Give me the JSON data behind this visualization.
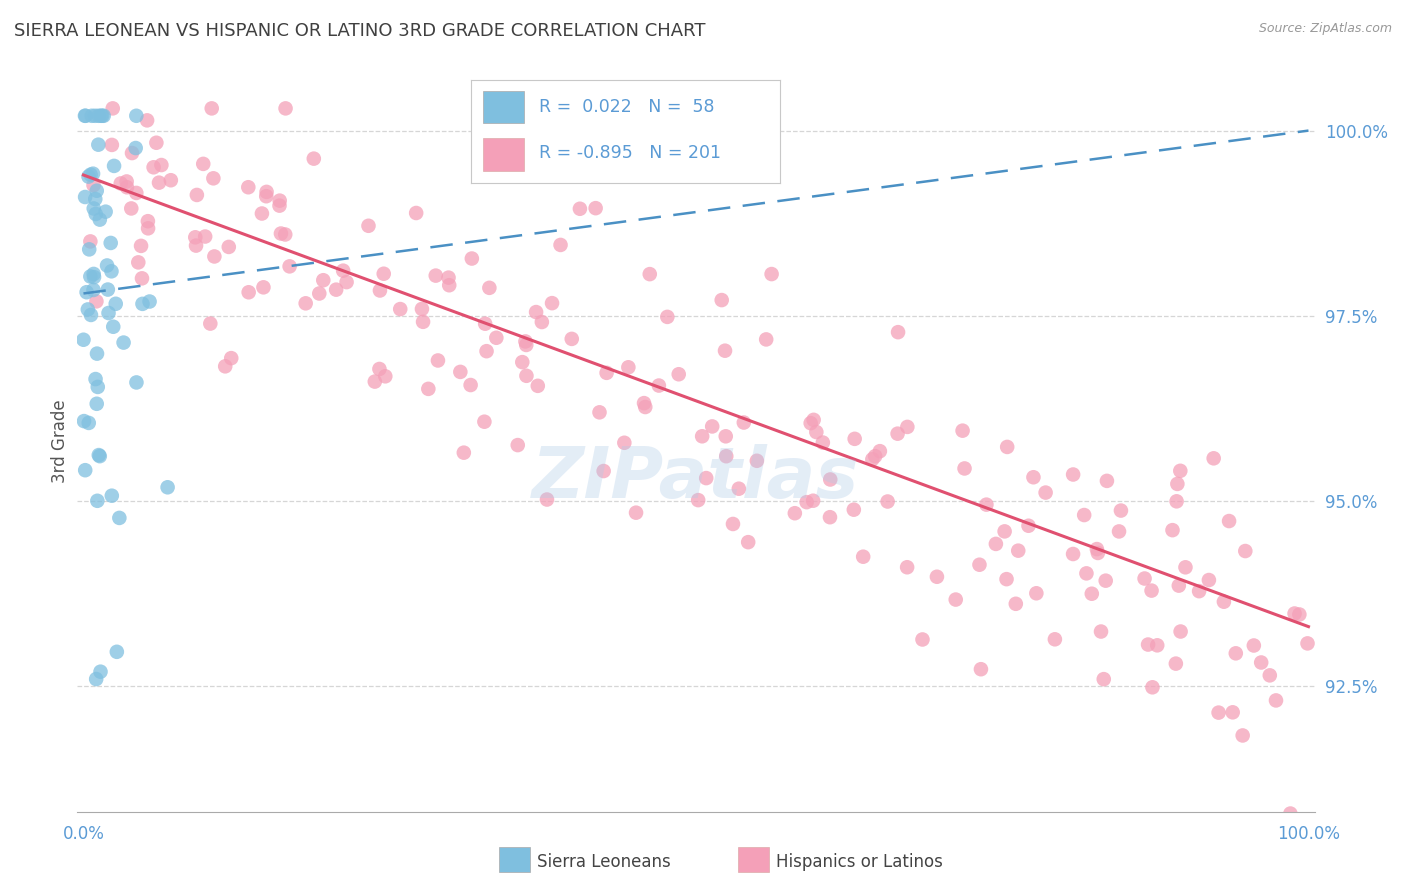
{
  "title": "SIERRA LEONEAN VS HISPANIC OR LATINO 3RD GRADE CORRELATION CHART",
  "source": "Source: ZipAtlas.com",
  "ylabel": "3rd Grade",
  "legend_labels": [
    "Sierra Leoneans",
    "Hispanics or Latinos"
  ],
  "legend_r": [
    0.022,
    -0.895
  ],
  "legend_n": [
    58,
    201
  ],
  "blue_color": "#7fbfdf",
  "pink_color": "#f4a0b8",
  "blue_line_color": "#4a90c4",
  "pink_line_color": "#e05070",
  "title_color": "#404040",
  "axis_label_color": "#5b9bd5",
  "right_ytick_labels": [
    "100.0%",
    "97.5%",
    "95.0%",
    "92.5%"
  ],
  "right_ytick_values": [
    1.0,
    0.975,
    0.95,
    0.925
  ],
  "ylim": [
    0.908,
    1.008
  ],
  "xlim": [
    -0.005,
    1.005
  ],
  "background_color": "#ffffff",
  "grid_color": "#cccccc",
  "watermark": "ZIPatlas",
  "watermark_color": "#b0cce8"
}
